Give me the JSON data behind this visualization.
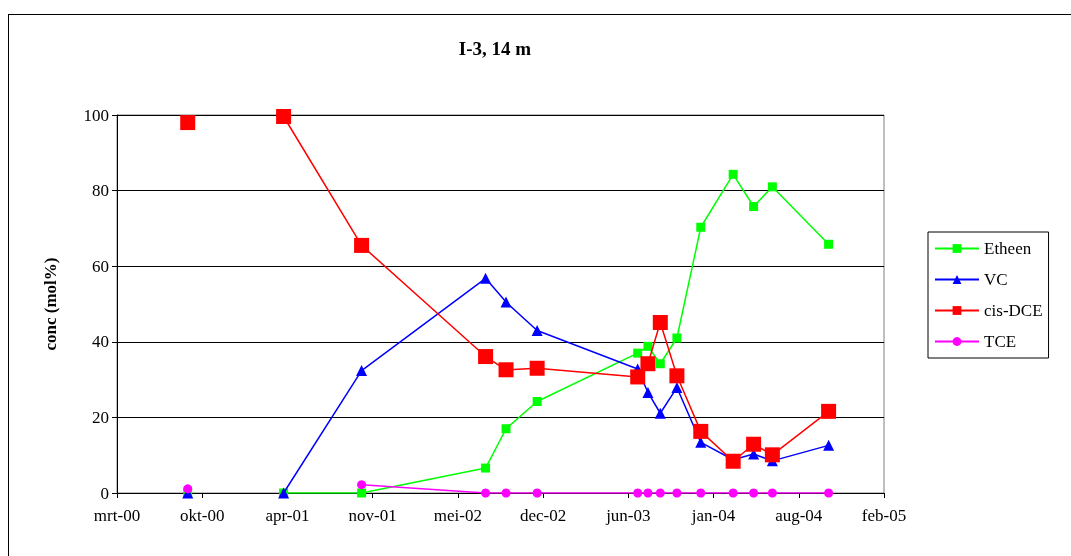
{
  "chart_data": {
    "type": "line",
    "title": "I-3, 14 m",
    "ylabel": "conc (mol%)",
    "x": [
      "2000-08-28",
      "2001-01-01",
      "2001-04-10",
      "2001-10-10",
      "2002-07-28",
      "2002-09-14",
      "2002-11-26",
      "2003-07-20",
      "2003-08-13",
      "2003-09-11",
      "2003-10-20",
      "2003-12-15",
      "2004-02-29",
      "2004-04-17",
      "2004-05-31",
      "2004-10-10"
    ],
    "series": [
      {
        "name": "Etheen",
        "color": "#00ff00",
        "marker": "square",
        "values": [
          0,
          null,
          0,
          0,
          6.6,
          17.0,
          24.2,
          37.0,
          38.8,
          34.2,
          41.0,
          70.3,
          84.3,
          75.8,
          81.0,
          65.8
        ]
      },
      {
        "name": "VC",
        "color": "#0000ff",
        "marker": "triangle",
        "values": [
          0,
          null,
          0,
          32.4,
          56.8,
          50.5,
          43.0,
          32.8,
          26.6,
          21.1,
          27.9,
          13.4,
          8.8,
          10.3,
          8.5,
          12.6
        ]
      },
      {
        "name": "cis-DCE",
        "color": "#ff0000",
        "marker": "square",
        "values": [
          98.0,
          null,
          99.6,
          65.5,
          36.1,
          32.6,
          33.0,
          30.7,
          34.2,
          45.1,
          31.0,
          16.3,
          8.4,
          12.9,
          10.1,
          21.6
        ]
      },
      {
        "name": "TCE",
        "color": "#ff00ff",
        "marker": "circle",
        "values": [
          1.1,
          null,
          null,
          2.2,
          0,
          0,
          0,
          0,
          0,
          0,
          0,
          0,
          0,
          0,
          0,
          0
        ]
      }
    ],
    "xlim": [
      "2000-03-15",
      "2005-02-17"
    ],
    "xticks": [
      {
        "value": "2000-03-15",
        "label": "mrt-00"
      },
      {
        "value": "2000-10-01",
        "label": "okt-00"
      },
      {
        "value": "2001-04-19",
        "label": "apr-01"
      },
      {
        "value": "2001-11-05",
        "label": "nov-01"
      },
      {
        "value": "2002-05-24",
        "label": "mei-02"
      },
      {
        "value": "2002-12-10",
        "label": "dec-02"
      },
      {
        "value": "2003-06-28",
        "label": "jun-03"
      },
      {
        "value": "2004-01-14",
        "label": "jan-04"
      },
      {
        "value": "2004-08-01",
        "label": "aug-04"
      },
      {
        "value": "2005-02-17",
        "label": "feb-05"
      }
    ],
    "ylim": [
      0,
      100
    ],
    "yticks": [
      0,
      20,
      40,
      60,
      80,
      100
    ],
    "grid": "y",
    "legend": "right",
    "line_style": "solid"
  }
}
